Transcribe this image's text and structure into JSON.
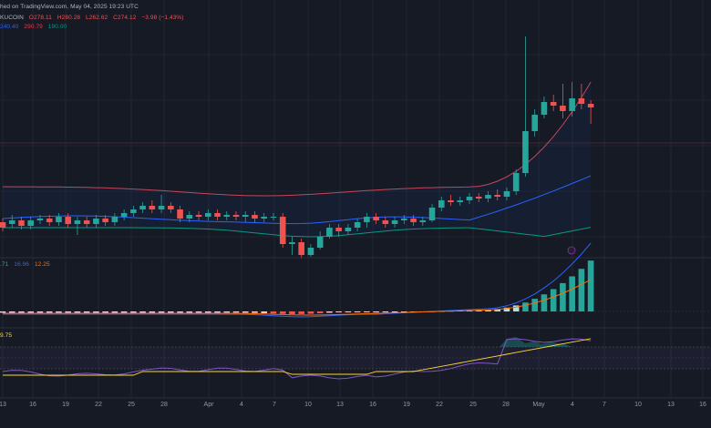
{
  "header": {
    "published": "hed on TradingView.com, May 04, 2025 19:23 UTC",
    "symbol_suffix": "KUCOIN",
    "ohlc": {
      "o": "O278.11",
      "h": "H280.28",
      "l": "L262.62",
      "c": "C274.12",
      "chg": "−3.98 (−1.43%)"
    },
    "bb": {
      "basis": "240.40",
      "upper": "290.79",
      "lower": "190.00"
    },
    "macd": {
      "hist": ".71",
      "macd": "16.96",
      "signal": "12.25"
    },
    "rsi": {
      "value": "9.75"
    }
  },
  "colors": {
    "background": "#161a25",
    "up": "#26a69a",
    "down": "#ef5350",
    "bb_upper": "#c2485a",
    "bb_basis": "#2962ff",
    "bb_lower": "#089981",
    "macd_line": "#2962ff",
    "signal_line": "#ff6d00",
    "rsi_line": "#7e57c2",
    "rsi_ma": "#fdd835"
  },
  "x_axis_labels": [
    "13",
    "16",
    "19",
    "22",
    "25",
    "28",
    "Apr",
    "4",
    "7",
    "10",
    "13",
    "16",
    "19",
    "22",
    "25",
    "28",
    "May",
    "4",
    "7",
    "10",
    "13",
    "16"
  ],
  "chart_data": {
    "type": "candlestick",
    "candles": [
      {
        "o": -4,
        "c": -10,
        "h": 0,
        "l": -14
      },
      {
        "o": -6,
        "c": -2,
        "h": 4,
        "l": -10
      },
      {
        "o": -2,
        "c": -8,
        "h": 2,
        "l": -12
      },
      {
        "o": -8,
        "c": -2,
        "h": 2,
        "l": -12
      },
      {
        "o": -2,
        "c": 0,
        "h": 4,
        "l": -6
      },
      {
        "o": 0,
        "c": -4,
        "h": 4,
        "l": -8
      },
      {
        "o": -4,
        "c": 2,
        "h": 6,
        "l": -8
      },
      {
        "o": 2,
        "c": -6,
        "h": 6,
        "l": -10
      },
      {
        "o": -6,
        "c": -2,
        "h": 2,
        "l": -18
      },
      {
        "o": -2,
        "c": -6,
        "h": 2,
        "l": -10
      },
      {
        "o": -6,
        "c": 0,
        "h": 4,
        "l": -10
      },
      {
        "o": 0,
        "c": -4,
        "h": 4,
        "l": -8
      },
      {
        "o": -4,
        "c": 2,
        "h": 6,
        "l": -8
      },
      {
        "o": 2,
        "c": 6,
        "h": 10,
        "l": -2
      },
      {
        "o": 6,
        "c": 10,
        "h": 14,
        "l": 2
      },
      {
        "o": 10,
        "c": 14,
        "h": 18,
        "l": 6
      },
      {
        "o": 14,
        "c": 10,
        "h": 20,
        "l": 6
      },
      {
        "o": 10,
        "c": 14,
        "h": 26,
        "l": 6
      },
      {
        "o": 14,
        "c": 10,
        "h": 18,
        "l": 6
      },
      {
        "o": 10,
        "c": 0,
        "h": 14,
        "l": -4
      },
      {
        "o": 0,
        "c": 4,
        "h": 8,
        "l": -4
      },
      {
        "o": 4,
        "c": 2,
        "h": 8,
        "l": -2
      },
      {
        "o": 2,
        "c": 6,
        "h": 10,
        "l": -2
      },
      {
        "o": 6,
        "c": 2,
        "h": 10,
        "l": -2
      },
      {
        "o": 2,
        "c": 4,
        "h": 8,
        "l": -2
      },
      {
        "o": 4,
        "c": 2,
        "h": 8,
        "l": -2
      },
      {
        "o": 2,
        "c": 4,
        "h": 8,
        "l": -4
      },
      {
        "o": 4,
        "c": 0,
        "h": 8,
        "l": -4
      },
      {
        "o": 0,
        "c": 2,
        "h": 6,
        "l": -4
      },
      {
        "o": 2,
        "c": 2,
        "h": 6,
        "l": -2
      },
      {
        "o": 2,
        "c": -28,
        "h": 6,
        "l": -32
      },
      {
        "o": -28,
        "c": -26,
        "h": -20,
        "l": -40
      },
      {
        "o": -26,
        "c": -40,
        "h": -22,
        "l": -44
      },
      {
        "o": -40,
        "c": -32,
        "h": -28,
        "l": -42
      },
      {
        "o": -32,
        "c": -20,
        "h": -14,
        "l": -34
      },
      {
        "o": -20,
        "c": -10,
        "h": -6,
        "l": -22
      },
      {
        "o": -10,
        "c": -14,
        "h": -6,
        "l": -20
      },
      {
        "o": -14,
        "c": -10,
        "h": -6,
        "l": -18
      },
      {
        "o": -10,
        "c": -4,
        "h": 0,
        "l": -14
      },
      {
        "o": -4,
        "c": 2,
        "h": 6,
        "l": -10
      },
      {
        "o": 2,
        "c": -2,
        "h": 6,
        "l": -6
      },
      {
        "o": -2,
        "c": -6,
        "h": 2,
        "l": -10
      },
      {
        "o": -6,
        "c": -2,
        "h": 2,
        "l": -10
      },
      {
        "o": -2,
        "c": 0,
        "h": 4,
        "l": -6
      },
      {
        "o": 0,
        "c": -4,
        "h": 4,
        "l": -8
      },
      {
        "o": -4,
        "c": -2,
        "h": 2,
        "l": -8
      },
      {
        "o": -2,
        "c": 12,
        "h": 16,
        "l": -4
      },
      {
        "o": 12,
        "c": 20,
        "h": 24,
        "l": 8
      },
      {
        "o": 20,
        "c": 18,
        "h": 26,
        "l": 14
      },
      {
        "o": 18,
        "c": 20,
        "h": 24,
        "l": 14
      },
      {
        "o": 20,
        "c": 24,
        "h": 28,
        "l": 16
      },
      {
        "o": 24,
        "c": 22,
        "h": 28,
        "l": 18
      },
      {
        "o": 22,
        "c": 26,
        "h": 30,
        "l": 18
      },
      {
        "o": 26,
        "c": 24,
        "h": 32,
        "l": 20
      },
      {
        "o": 24,
        "c": 30,
        "h": 34,
        "l": 20
      },
      {
        "o": 30,
        "c": 50,
        "h": 54,
        "l": 26
      },
      {
        "o": 50,
        "c": 96,
        "h": 200,
        "l": 46
      },
      {
        "o": 96,
        "c": 114,
        "h": 120,
        "l": 90
      },
      {
        "o": 114,
        "c": 128,
        "h": 134,
        "l": 110
      },
      {
        "o": 128,
        "c": 124,
        "h": 136,
        "l": 118
      },
      {
        "o": 124,
        "c": 118,
        "h": 148,
        "l": 110
      },
      {
        "o": 118,
        "c": 132,
        "h": 150,
        "l": 112
      },
      {
        "o": 132,
        "c": 126,
        "h": 148,
        "l": 120
      },
      {
        "o": 126,
        "c": 122,
        "h": 130,
        "l": 104
      }
    ]
  }
}
